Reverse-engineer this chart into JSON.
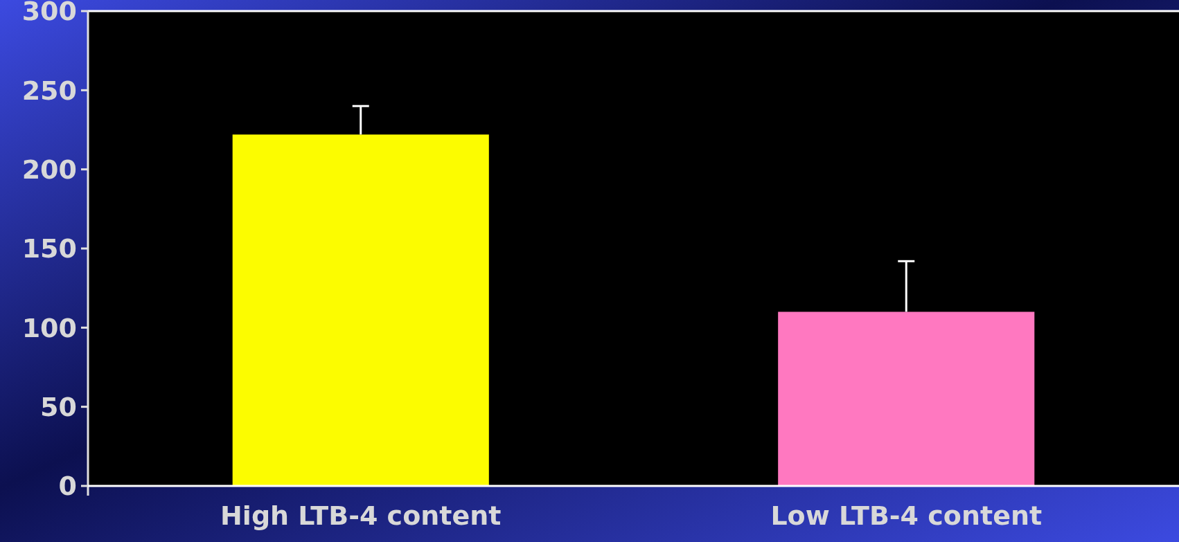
{
  "chart_data": {
    "type": "bar",
    "categories": [
      "High LTB-4 content",
      "Low LTB-4 content"
    ],
    "values": [
      222,
      110
    ],
    "colors": [
      "#fcfc00",
      "#ff78c0"
    ],
    "errors": [
      [
        222,
        240
      ],
      [
        110,
        142
      ]
    ],
    "ylim": [
      0,
      300
    ],
    "yticks": [
      0,
      50,
      100,
      150,
      200,
      250,
      300
    ]
  }
}
